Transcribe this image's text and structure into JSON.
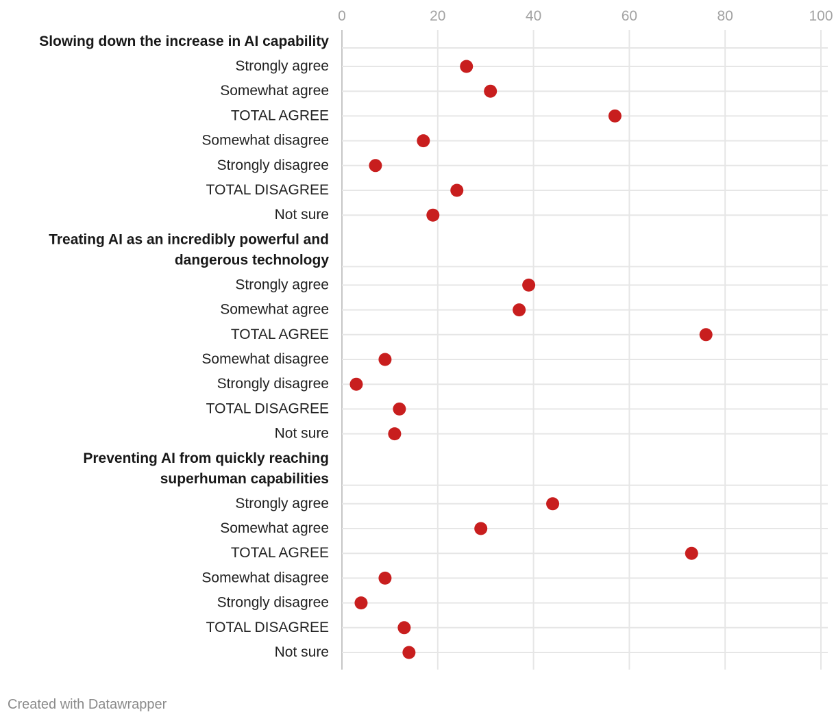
{
  "chart_data": {
    "type": "dot",
    "xlim": [
      0,
      100
    ],
    "x_ticks": [
      0,
      20,
      40,
      60,
      80,
      100
    ],
    "grid": true,
    "dot_color": "#c81e1e",
    "groups": [
      {
        "title_lines": [
          "Slowing down the increase in AI  capability"
        ],
        "rows": [
          {
            "label": "Strongly agree",
            "value": 26
          },
          {
            "label": "Somewhat agree",
            "value": 31
          },
          {
            "label": "TOTAL AGREE",
            "value": 57
          },
          {
            "label": "Somewhat disagree",
            "value": 17
          },
          {
            "label": "Strongly disagree",
            "value": 7
          },
          {
            "label": "TOTAL DISAGREE",
            "value": 24
          },
          {
            "label": "Not sure",
            "value": 19
          }
        ]
      },
      {
        "title_lines": [
          "Treating AI as an incredibly powerful and",
          "dangerous technology"
        ],
        "rows": [
          {
            "label": "Strongly agree",
            "value": 39
          },
          {
            "label": "Somewhat agree",
            "value": 37
          },
          {
            "label": "TOTAL AGREE",
            "value": 76
          },
          {
            "label": "Somewhat disagree",
            "value": 9
          },
          {
            "label": "Strongly disagree",
            "value": 3
          },
          {
            "label": "TOTAL DISAGREE",
            "value": 12
          },
          {
            "label": "Not sure",
            "value": 11
          }
        ]
      },
      {
        "title_lines": [
          "Preventing AI from quickly reaching",
          "superhuman capabilities"
        ],
        "rows": [
          {
            "label": "Strongly agree",
            "value": 44
          },
          {
            "label": "Somewhat agree",
            "value": 29
          },
          {
            "label": "TOTAL AGREE",
            "value": 73
          },
          {
            "label": "Somewhat disagree",
            "value": 9
          },
          {
            "label": "Strongly disagree",
            "value": 4
          },
          {
            "label": "TOTAL DISAGREE",
            "value": 13
          },
          {
            "label": "Not sure",
            "value": 14
          }
        ]
      }
    ]
  },
  "footer": "Created with Datawrapper"
}
